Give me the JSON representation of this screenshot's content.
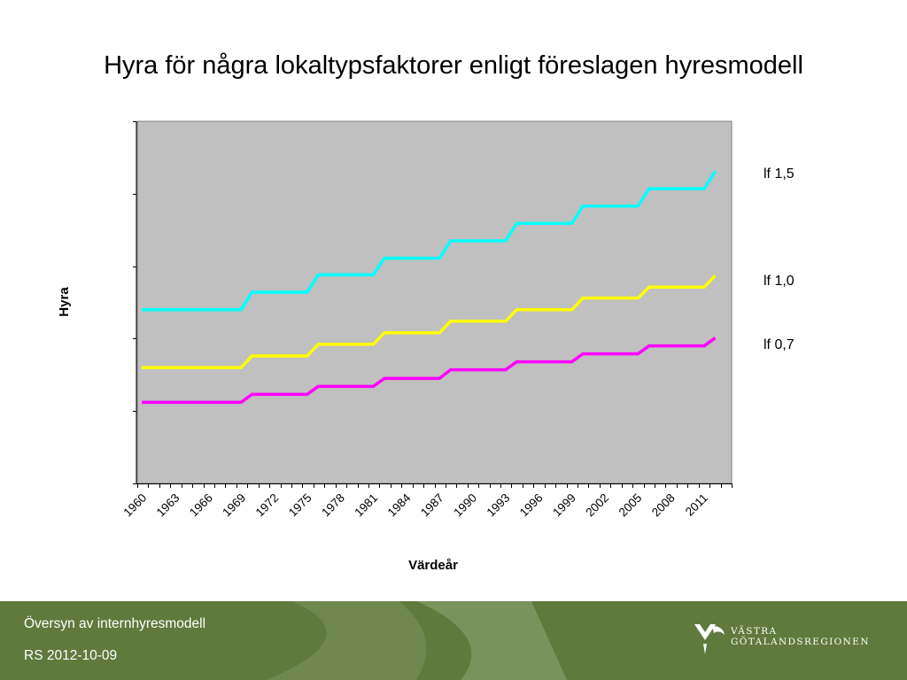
{
  "slide": {
    "title": "Hyra för några lokaltypsfaktorer enligt föreslagen hyresmodell"
  },
  "chart_data": {
    "type": "line",
    "title": "Hyra för några lokaltypsfaktorer enligt föreslagen hyresmodell",
    "xlabel": "Värdeår",
    "ylabel": "Hyra",
    "x": [
      1960,
      1961,
      1962,
      1963,
      1964,
      1965,
      1966,
      1967,
      1968,
      1969,
      1970,
      1971,
      1972,
      1973,
      1974,
      1975,
      1976,
      1977,
      1978,
      1979,
      1980,
      1981,
      1982,
      1983,
      1984,
      1985,
      1986,
      1987,
      1988,
      1989,
      1990,
      1991,
      1992,
      1993,
      1994,
      1995,
      1996,
      1997,
      1998,
      1999,
      2000,
      2001,
      2002,
      2003,
      2004,
      2005,
      2006,
      2007,
      2008,
      2009,
      2010,
      2011,
      2012,
      2013
    ],
    "x_tick_labels": [
      "1960",
      "1963",
      "1966",
      "1969",
      "1972",
      "1975",
      "1978",
      "1981",
      "1984",
      "1987",
      "1990",
      "1993",
      "1996",
      "1999",
      "2002",
      "2005",
      "2008",
      "2011"
    ],
    "xlim": [
      1960,
      2013
    ],
    "ylim": [
      0,
      5
    ],
    "y_ticks": [
      0,
      1,
      2,
      3,
      4,
      5
    ],
    "y_tick_labels_shown": false,
    "grid": false,
    "plot_background": "#c0c0c0",
    "step_years": [
      1960,
      1970,
      1976,
      1982,
      1988,
      1994,
      2000,
      2006,
      2012
    ],
    "series": [
      {
        "name": "lf 1,5",
        "color": "#00ffff",
        "levels": [
          2.4,
          2.64,
          2.88,
          3.11,
          3.35,
          3.59,
          3.83,
          4.07,
          4.31
        ]
      },
      {
        "name": "lf 1,0",
        "color": "#ffff00",
        "levels": [
          1.6,
          1.76,
          1.92,
          2.08,
          2.24,
          2.4,
          2.56,
          2.71,
          2.87
        ]
      },
      {
        "name": "lf 0,7",
        "color": "#ff00ff",
        "levels": [
          1.12,
          1.23,
          1.34,
          1.45,
          1.57,
          1.68,
          1.79,
          1.9,
          2.01
        ]
      }
    ]
  },
  "footer": {
    "line1": "Översyn av internhyresmodell",
    "line2": "RS  2012-10-09",
    "logo_line1": "VÄSTRA",
    "logo_line2": "GÖTALANDSREGIONEN",
    "background_color": "#5f7a3c",
    "accent_color": "#8a9e6a"
  }
}
